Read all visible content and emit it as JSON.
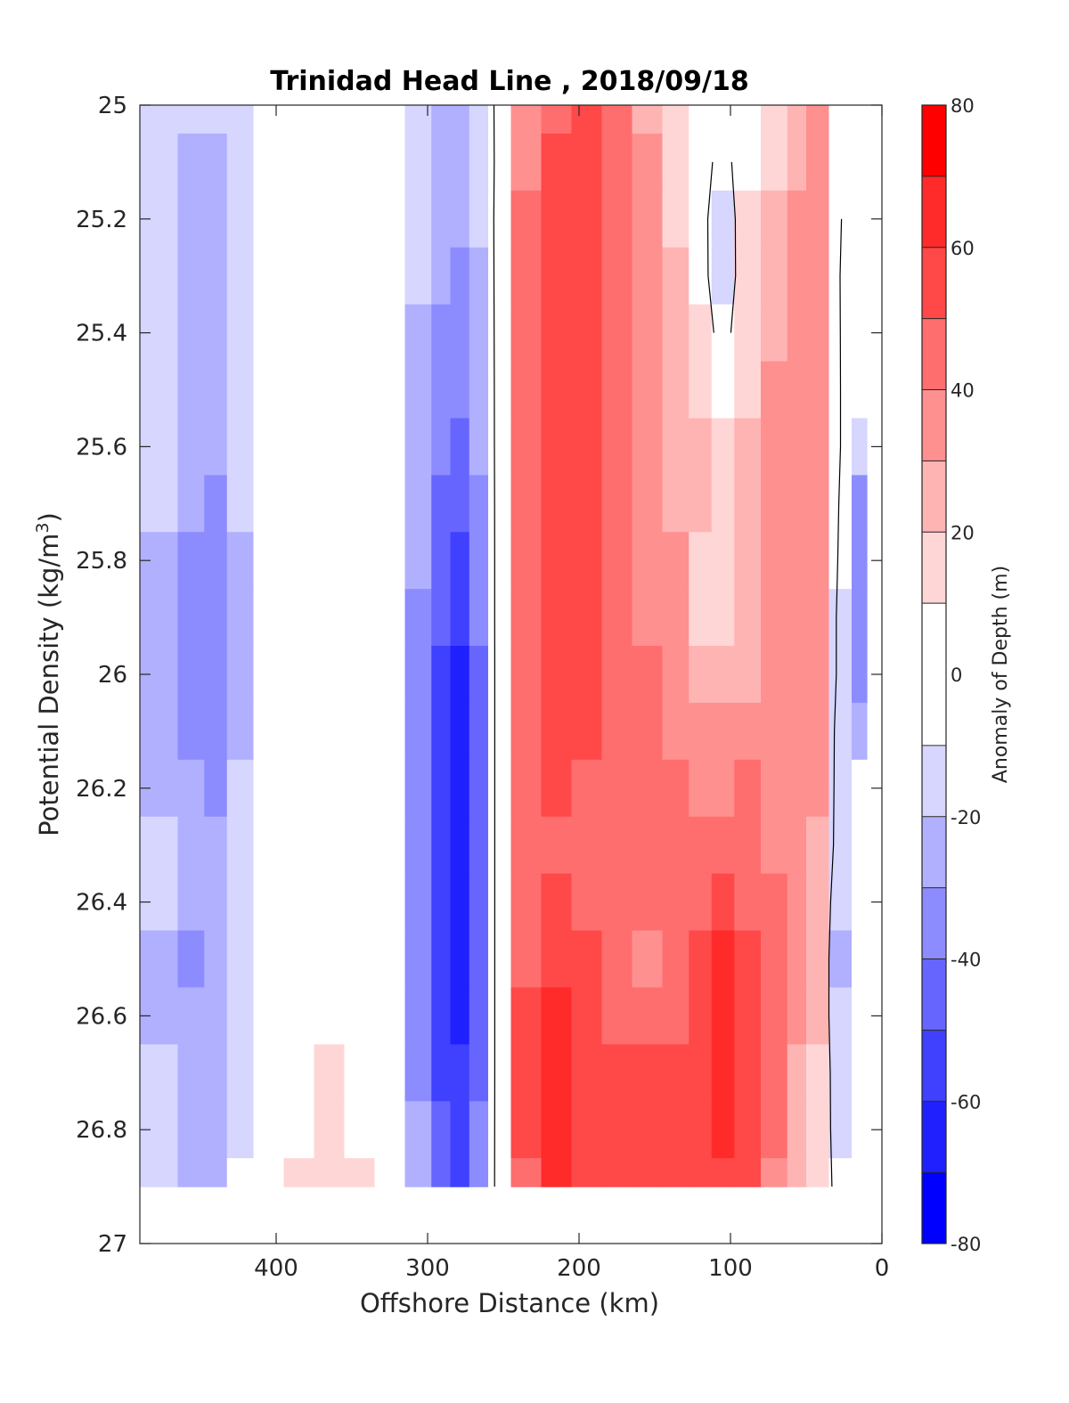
{
  "chart_data": {
    "type": "heatmap",
    "title": "Trinidad Head Line , 2018/09/18",
    "xlabel": "Offshore Distance (km)",
    "ylabel_main": "Potential Density (kg/m",
    "ylabel_sup": "3",
    "ylabel_close": ")",
    "colorbar_label": "Anomaly of Depth (m)",
    "xlim": [
      490,
      0
    ],
    "x_reversed": true,
    "ylim": [
      25,
      27
    ],
    "y_reversed": true,
    "xticks": [
      400,
      300,
      200,
      100,
      0
    ],
    "yticks": [
      25,
      25.2,
      25.4,
      25.6,
      25.8,
      26,
      26.2,
      26.4,
      26.6,
      26.8,
      27
    ],
    "ytick_labels": [
      "25",
      "25.2",
      "25.4",
      "25.6",
      "25.8",
      "26",
      "26.2",
      "26.4",
      "26.6",
      "26.8",
      "27"
    ],
    "colorbar": {
      "range": [
        -80,
        80
      ],
      "levels": [
        -80,
        -70,
        -60,
        -50,
        -40,
        -30,
        -20,
        -10,
        10,
        20,
        30,
        40,
        50,
        60,
        70,
        80
      ],
      "colors": [
        "#0000ff",
        "#2020ff",
        "#4040ff",
        "#6666ff",
        "#8c8cff",
        "#b0b0ff",
        "#d6d6ff",
        "#ffffff",
        "#ffd6d6",
        "#ffb4b4",
        "#ff9090",
        "#ff6e6e",
        "#ff4848",
        "#ff2a2a",
        "#ff0000"
      ],
      "ticks": [
        -80,
        -60,
        -40,
        -20,
        0,
        20,
        40,
        60,
        80
      ],
      "tick_labels": [
        "-80",
        "-60",
        "-40",
        "-20",
        "0",
        "20",
        "40",
        "60",
        "80"
      ]
    },
    "anomaly_grid": {
      "x_km": [
        475,
        455,
        440,
        425,
        405,
        385,
        365,
        345,
        325,
        305,
        290,
        280,
        265,
        255,
        235,
        215,
        195,
        175,
        155,
        135,
        120,
        105,
        90,
        70,
        55,
        45,
        25,
        15
      ],
      "density": [
        25.0,
        25.1,
        25.2,
        25.3,
        25.4,
        25.5,
        25.6,
        25.7,
        25.8,
        25.9,
        26.0,
        26.1,
        26.2,
        26.3,
        26.4,
        26.5,
        26.6,
        26.7,
        26.8,
        26.9
      ],
      "values_m": [
        [
          -12,
          -15,
          -15,
          -12,
          -3,
          0,
          0,
          0,
          0,
          -15,
          -22,
          -25,
          -15,
          2,
          35,
          48,
          55,
          40,
          28,
          18,
          8,
          0,
          5,
          15,
          25,
          30,
          0,
          0
        ],
        [
          -15,
          -22,
          -28,
          -15,
          -3,
          0,
          0,
          0,
          0,
          -18,
          -25,
          -28,
          -18,
          2,
          38,
          50,
          55,
          42,
          30,
          18,
          6,
          -5,
          8,
          18,
          28,
          30,
          0,
          0
        ],
        [
          -18,
          -25,
          -30,
          -18,
          -4,
          0,
          0,
          0,
          0,
          -20,
          -28,
          -30,
          -20,
          3,
          40,
          52,
          55,
          45,
          30,
          18,
          6,
          -12,
          10,
          22,
          30,
          32,
          -3,
          0
        ],
        [
          -18,
          -25,
          -28,
          -18,
          -4,
          0,
          0,
          0,
          0,
          -20,
          -30,
          -32,
          -22,
          3,
          42,
          52,
          55,
          45,
          32,
          20,
          8,
          -15,
          12,
          25,
          32,
          33,
          -5,
          0
        ],
        [
          -18,
          -25,
          -25,
          -18,
          -4,
          0,
          0,
          0,
          0,
          -22,
          -32,
          -35,
          -25,
          3,
          42,
          52,
          55,
          45,
          32,
          20,
          12,
          -8,
          15,
          28,
          32,
          35,
          -5,
          0
        ],
        [
          -18,
          -25,
          -25,
          -18,
          -4,
          0,
          0,
          0,
          0,
          -25,
          -35,
          -38,
          -28,
          3,
          42,
          52,
          55,
          45,
          32,
          22,
          18,
          5,
          18,
          30,
          35,
          38,
          -5,
          -5
        ],
        [
          -18,
          -28,
          -28,
          -20,
          -4,
          0,
          0,
          0,
          0,
          -25,
          -38,
          -42,
          -30,
          3,
          42,
          52,
          55,
          45,
          35,
          25,
          20,
          12,
          20,
          30,
          35,
          38,
          -5,
          -15
        ],
        [
          -20,
          -30,
          -32,
          -20,
          -4,
          0,
          0,
          0,
          0,
          -28,
          -42,
          -48,
          -35,
          3,
          42,
          52,
          55,
          48,
          35,
          28,
          20,
          18,
          22,
          32,
          35,
          38,
          -8,
          -35
        ],
        [
          -22,
          -32,
          -35,
          -22,
          -4,
          0,
          0,
          0,
          0,
          -30,
          -45,
          -52,
          -38,
          3,
          42,
          52,
          55,
          48,
          38,
          30,
          18,
          15,
          24,
          32,
          35,
          38,
          -10,
          -38
        ],
        [
          -22,
          -32,
          -38,
          -22,
          -4,
          0,
          0,
          0,
          0,
          -32,
          -48,
          -58,
          -40,
          3,
          42,
          52,
          55,
          48,
          38,
          30,
          18,
          16,
          25,
          32,
          35,
          35,
          -12,
          -38
        ],
        [
          -22,
          -32,
          -38,
          -22,
          -4,
          0,
          0,
          0,
          0,
          -35,
          -52,
          -62,
          -42,
          3,
          42,
          52,
          52,
          48,
          40,
          32,
          25,
          25,
          28,
          32,
          35,
          35,
          -12,
          -40
        ],
        [
          -22,
          -32,
          -35,
          -22,
          -4,
          0,
          0,
          0,
          0,
          -35,
          -52,
          -65,
          -45,
          3,
          42,
          50,
          50,
          45,
          42,
          35,
          32,
          30,
          35,
          35,
          35,
          32,
          -15,
          -30
        ],
        [
          -22,
          -30,
          -32,
          -20,
          -4,
          0,
          0,
          0,
          0,
          -35,
          -55,
          -65,
          -45,
          3,
          42,
          50,
          48,
          45,
          42,
          40,
          38,
          38,
          40,
          38,
          32,
          30,
          -15,
          0
        ],
        [
          -20,
          -28,
          -28,
          -18,
          -4,
          0,
          0,
          0,
          0,
          -35,
          -55,
          -68,
          -45,
          3,
          42,
          48,
          48,
          45,
          42,
          42,
          42,
          45,
          42,
          38,
          32,
          28,
          -15,
          0
        ],
        [
          -20,
          -25,
          -25,
          -15,
          -4,
          0,
          0,
          0,
          0,
          -35,
          -55,
          -65,
          -45,
          3,
          45,
          52,
          48,
          42,
          40,
          42,
          48,
          55,
          48,
          40,
          32,
          25,
          -20,
          0
        ],
        [
          -25,
          -32,
          -25,
          -15,
          -4,
          0,
          0,
          0,
          0,
          -35,
          -55,
          -62,
          -45,
          3,
          48,
          55,
          50,
          40,
          38,
          42,
          55,
          65,
          52,
          40,
          32,
          22,
          -22,
          0
        ],
        [
          -22,
          -28,
          -25,
          -15,
          -4,
          0,
          0,
          0,
          0,
          -35,
          -52,
          -62,
          -45,
          3,
          52,
          62,
          52,
          45,
          45,
          48,
          58,
          68,
          55,
          42,
          30,
          20,
          -20,
          0
        ],
        [
          -20,
          -25,
          -25,
          -15,
          -4,
          0,
          12,
          0,
          0,
          -32,
          -52,
          -60,
          -42,
          3,
          52,
          62,
          55,
          52,
          50,
          52,
          58,
          62,
          55,
          42,
          28,
          18,
          -15,
          0
        ],
        [
          -20,
          -30,
          -25,
          -12,
          -4,
          0,
          12,
          0,
          0,
          -30,
          -48,
          -58,
          -38,
          3,
          50,
          62,
          58,
          55,
          52,
          55,
          58,
          60,
          52,
          40,
          25,
          15,
          -12,
          0
        ],
        [
          -18,
          -22,
          -22,
          -10,
          -4,
          10,
          15,
          12,
          0,
          -28,
          -45,
          -55,
          -35,
          3,
          48,
          62,
          58,
          55,
          55,
          55,
          58,
          58,
          50,
          38,
          22,
          12,
          -8,
          0
        ]
      ]
    }
  }
}
